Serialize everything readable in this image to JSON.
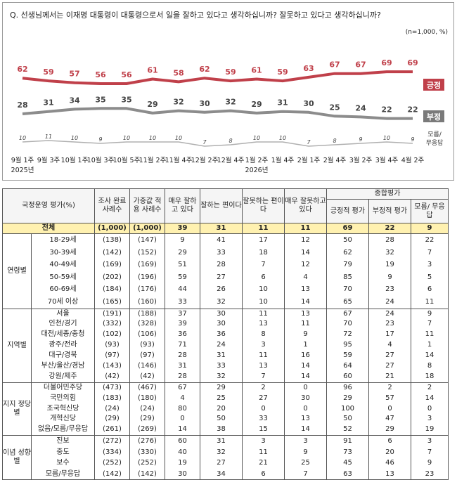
{
  "question": "Q. 선생님께서는 이재명 대통령이 대통령으로서 일을 잘하고 있다고 생각하십니까? 잘못하고 있다고 생각하십니까?",
  "note": "(n=1,000, %)",
  "colors": {
    "positive": "#c0404a",
    "negative": "#8c8c8c",
    "undecided": "#b0b0b0",
    "total_row": "#fff1b0"
  },
  "chart_data": {
    "type": "line",
    "x": [
      "9월 1주",
      "9월 3주",
      "10월 1주",
      "10월 3주",
      "10월 5주",
      "11월 2주",
      "11월 4주",
      "12월 2주",
      "12월 4주",
      "1월 2주",
      "1월 4주",
      "2월 1주",
      "2월 4주",
      "3월 2주",
      "3월 4주",
      "4월 2주"
    ],
    "year_labels": [
      {
        "index": 0,
        "text": "2025년"
      },
      {
        "index": 9,
        "text": "2026년"
      }
    ],
    "series": [
      {
        "name": "긍정",
        "values": [
          62,
          59,
          57,
          56,
          56,
          61,
          58,
          62,
          59,
          61,
          59,
          63,
          67,
          67,
          69,
          69
        ]
      },
      {
        "name": "부정",
        "values": [
          28,
          31,
          34,
          35,
          35,
          29,
          32,
          30,
          32,
          29,
          31,
          30,
          25,
          24,
          22,
          22
        ]
      },
      {
        "name": "모름/\n무응답",
        "values": [
          10,
          11,
          10,
          9,
          10,
          10,
          10,
          7,
          8,
          10,
          10,
          7,
          8,
          9,
          10,
          9
        ]
      }
    ],
    "legend": [
      "긍정",
      "부정",
      "모름/무응답"
    ]
  },
  "table": {
    "headers": [
      "국정운영 평가(%)",
      "조사 완료 사례수",
      "가중값 적용 사례수",
      "매우 잘하고 있다",
      "잘하는 편이다",
      "잘못하는 편이다",
      "매우 잘못하고 있다",
      "종합평가",
      "긍정적 평가",
      "부정적 평가",
      "모름/ 무응답"
    ],
    "total": {
      "label": "전체",
      "vals": [
        "(1,000)",
        "(1,000)",
        "39",
        "31",
        "11",
        "11",
        "69",
        "22",
        "9"
      ]
    },
    "groups": [
      {
        "name": "연령별",
        "rows": [
          [
            "18-29세",
            "(138)",
            "(147)",
            "9",
            "41",
            "17",
            "12",
            "50",
            "28",
            "22"
          ],
          [
            "30-39세",
            "(142)",
            "(152)",
            "29",
            "33",
            "18",
            "14",
            "62",
            "32",
            "7"
          ],
          [
            "40-49세",
            "(169)",
            "(169)",
            "51",
            "28",
            "7",
            "12",
            "79",
            "19",
            "3"
          ],
          [
            "50-59세",
            "(202)",
            "(196)",
            "59",
            "27",
            "6",
            "4",
            "85",
            "9",
            "5"
          ],
          [
            "60-69세",
            "(184)",
            "(176)",
            "44",
            "26",
            "10",
            "13",
            "70",
            "23",
            "6"
          ],
          [
            "70세 이상",
            "(165)",
            "(160)",
            "33",
            "32",
            "10",
            "14",
            "65",
            "24",
            "11"
          ]
        ]
      },
      {
        "name": "지역별",
        "rows": [
          [
            "서울",
            "(191)",
            "(188)",
            "37",
            "30",
            "11",
            "13",
            "67",
            "24",
            "9"
          ],
          [
            "인천/경기",
            "(332)",
            "(328)",
            "39",
            "30",
            "13",
            "11",
            "70",
            "23",
            "7"
          ],
          [
            "대전/세종/충청",
            "(102)",
            "(106)",
            "36",
            "36",
            "8",
            "9",
            "72",
            "17",
            "11"
          ],
          [
            "광주/전라",
            "(93)",
            "(93)",
            "71",
            "24",
            "3",
            "1",
            "95",
            "4",
            "1"
          ],
          [
            "대구/경북",
            "(97)",
            "(97)",
            "28",
            "31",
            "11",
            "16",
            "59",
            "27",
            "14"
          ],
          [
            "부산/울산/경남",
            "(143)",
            "(146)",
            "31",
            "33",
            "13",
            "14",
            "64",
            "27",
            "8"
          ],
          [
            "강원/제주",
            "(42)",
            "(42)",
            "28",
            "32",
            "7",
            "14",
            "60",
            "21",
            "18"
          ]
        ]
      },
      {
        "name": "지지 정당별",
        "rows": [
          [
            "더불어민주당",
            "(473)",
            "(467)",
            "67",
            "29",
            "2",
            "0",
            "96",
            "2",
            "2"
          ],
          [
            "국민의힘",
            "(183)",
            "(180)",
            "4",
            "25",
            "27",
            "30",
            "29",
            "57",
            "14"
          ],
          [
            "조국혁신당",
            "(24)",
            "(24)",
            "80",
            "20",
            "0",
            "0",
            "100",
            "0",
            "0"
          ],
          [
            "개혁신당",
            "(29)",
            "(29)",
            "0",
            "50",
            "33",
            "13",
            "50",
            "47",
            "3"
          ],
          [
            "없음/모름/무응답",
            "(261)",
            "(269)",
            "14",
            "38",
            "15",
            "14",
            "52",
            "29",
            "19"
          ]
        ]
      },
      {
        "name": "이념 성향별",
        "rows": [
          [
            "진보",
            "(272)",
            "(276)",
            "60",
            "31",
            "3",
            "3",
            "91",
            "6",
            "3"
          ],
          [
            "중도",
            "(334)",
            "(330)",
            "40",
            "32",
            "11",
            "9",
            "73",
            "20",
            "7"
          ],
          [
            "보수",
            "(252)",
            "(252)",
            "19",
            "27",
            "21",
            "25",
            "45",
            "46",
            "9"
          ],
          [
            "모름/무응답",
            "(142)",
            "(142)",
            "30",
            "34",
            "6",
            "7",
            "63",
            "13",
            "23"
          ]
        ]
      }
    ]
  }
}
